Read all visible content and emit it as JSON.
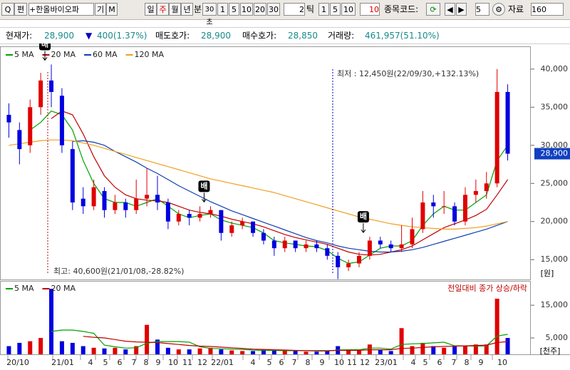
{
  "toolbar": {
    "search": "Q",
    "edit": "편",
    "stock_name": "+한올바이오파",
    "btn_gi": "기",
    "btn_m": "M",
    "periods": [
      "일",
      "주",
      "월",
      "년",
      "분"
    ],
    "minute": "30초",
    "minute_options": [
      "1",
      "5",
      "10",
      "20",
      "30"
    ],
    "tick_count": "2",
    "tick": "틱",
    "tick_options": [
      "1",
      "5",
      "10"
    ],
    "code_label": "종목코드:",
    "count": "5",
    "data_label": "자료",
    "data_count": "160"
  },
  "info": {
    "current_label": "현재가:",
    "current": "28,900",
    "change_arrow": "▼",
    "change": "400(1.37%)",
    "ask_label": "매도호가:",
    "ask": "28,900",
    "bid_label": "매수호가:",
    "bid": "28,850",
    "volume_label": "거래량:",
    "volume": "461,957(51.10%)"
  },
  "chart_data": [
    {
      "type": "candlestick",
      "up_color": "#e00000",
      "down_color": "#0000e0",
      "candles": [
        [
          34000,
          35500,
          31000,
          33000
        ],
        [
          32000,
          33000,
          27500,
          29500
        ],
        [
          30000,
          36000,
          29000,
          35000
        ],
        [
          35000,
          39500,
          34000,
          38500
        ],
        [
          38500,
          40600,
          35000,
          37000
        ],
        [
          36500,
          37500,
          29000,
          30000
        ],
        [
          29500,
          30500,
          21500,
          22500
        ],
        [
          23000,
          24500,
          21000,
          22000
        ],
        [
          22000,
          25500,
          21500,
          24500
        ],
        [
          24000,
          24500,
          20500,
          21500
        ],
        [
          21500,
          23500,
          21000,
          22500
        ],
        [
          22500,
          23000,
          20500,
          21500
        ],
        [
          21500,
          25500,
          21000,
          23000
        ],
        [
          23000,
          27000,
          22000,
          23500
        ],
        [
          23500,
          26000,
          21500,
          22500
        ],
        [
          22500,
          23000,
          19000,
          20000
        ],
        [
          20000,
          21500,
          19500,
          21000
        ],
        [
          21000,
          21500,
          19500,
          20500
        ],
        [
          20500,
          22000,
          20000,
          21000
        ],
        [
          21000,
          22000,
          20500,
          21500
        ],
        [
          21500,
          21500,
          17500,
          18500
        ],
        [
          18500,
          20000,
          18000,
          19500
        ],
        [
          19500,
          20500,
          19000,
          20000
        ],
        [
          20000,
          20000,
          18000,
          18500
        ],
        [
          18500,
          19000,
          17000,
          17500
        ],
        [
          17500,
          18000,
          15500,
          16500
        ],
        [
          16500,
          18000,
          16000,
          17500
        ],
        [
          17500,
          17500,
          16000,
          16500
        ],
        [
          16500,
          17500,
          16000,
          17000
        ],
        [
          17000,
          17500,
          16000,
          16500
        ],
        [
          16500,
          17000,
          15000,
          15500
        ],
        [
          15500,
          16000,
          12450,
          14000
        ],
        [
          14000,
          15000,
          13500,
          14500
        ],
        [
          14500,
          16000,
          14000,
          15500
        ],
        [
          15500,
          18000,
          15000,
          17500
        ],
        [
          17500,
          18000,
          16500,
          17000
        ],
        [
          17000,
          17500,
          16000,
          16500
        ],
        [
          16500,
          19500,
          16000,
          17000
        ],
        [
          17000,
          20500,
          16500,
          19000
        ],
        [
          19000,
          24000,
          18500,
          22500
        ],
        [
          22500,
          23500,
          20500,
          22000
        ],
        [
          22000,
          24000,
          21000,
          22000
        ],
        [
          22000,
          22500,
          19500,
          20000
        ],
        [
          20000,
          24500,
          19500,
          23500
        ],
        [
          23500,
          25500,
          22500,
          24000
        ],
        [
          24000,
          26500,
          23000,
          25000
        ],
        [
          25000,
          40000,
          24500,
          37000
        ],
        [
          37000,
          38000,
          28000,
          28900
        ]
      ],
      "series": [
        {
          "name": "5 MA",
          "color": "#00a000",
          "values": [
            null,
            null,
            32000,
            33000,
            34500,
            34000,
            32000,
            28000,
            25000,
            23000,
            22500,
            22500,
            22000,
            22500,
            23000,
            22000,
            21000,
            20500,
            20800,
            21000,
            20200,
            19800,
            19500,
            19200,
            18500,
            17500,
            17200,
            17000,
            16800,
            16700,
            16200,
            15200,
            14500,
            14700,
            15600,
            16500,
            16800,
            16800,
            17500,
            19500,
            21000,
            22000,
            21500,
            21500,
            22500,
            23500,
            28000,
            30000
          ]
        },
        {
          "name": "20 MA",
          "color": "#c00000",
          "values": [
            null,
            null,
            null,
            null,
            33500,
            34500,
            34000,
            31500,
            28500,
            26000,
            24500,
            23500,
            23000,
            22800,
            22700,
            22500,
            22000,
            21500,
            21200,
            21000,
            20700,
            20300,
            20000,
            19700,
            19300,
            18800,
            18300,
            17900,
            17600,
            17300,
            17000,
            16500,
            16000,
            15700,
            15600,
            15700,
            16000,
            16300,
            16800,
            17600,
            18400,
            19200,
            19700,
            20200,
            20800,
            21600,
            23500,
            25500
          ]
        },
        {
          "name": "60 MA",
          "color": "#1040b0",
          "values": [
            null,
            null,
            null,
            null,
            null,
            null,
            30500,
            30600,
            30400,
            30000,
            29200,
            28500,
            27800,
            27000,
            26300,
            25500,
            24700,
            24000,
            23300,
            22600,
            22000,
            21400,
            20900,
            20400,
            19900,
            19400,
            18900,
            18400,
            17900,
            17500,
            17200,
            16800,
            16500,
            16300,
            16100,
            16000,
            16000,
            16100,
            16300,
            16600,
            17000,
            17400,
            17800,
            18200,
            18600,
            19000,
            19500,
            20000
          ]
        },
        {
          "name": "120 MA",
          "color": "#f0a020",
          "values": [
            30000,
            30200,
            30400,
            30600,
            30700,
            30700,
            30600,
            30300,
            30000,
            29600,
            29200,
            28800,
            28400,
            28000,
            27600,
            27200,
            26800,
            26400,
            26000,
            25600,
            25300,
            25000,
            24700,
            24400,
            24100,
            23800,
            23400,
            23000,
            22600,
            22200,
            21800,
            21400,
            21000,
            20600,
            20300,
            20000,
            19700,
            19500,
            19300,
            19200,
            19100,
            19000,
            19000,
            19100,
            19200,
            19400,
            19700,
            20000
          ]
        }
      ],
      "ylim": [
        12400,
        42700
      ],
      "yticks": [
        {
          "value": 15000,
          "label": "15,000"
        },
        {
          "value": 20000,
          "label": "20,000"
        },
        {
          "value": 25000,
          "label": "25,000"
        },
        {
          "value": 30000,
          "label": "30,000"
        },
        {
          "value": 35000,
          "label": "35,000"
        },
        {
          "value": 40000,
          "label": "40,000"
        }
      ],
      "y_unit": "[원]",
      "markers": [
        "배",
        "배",
        "배"
      ],
      "annotations": [
        "최저 : 12,450원(22/09/30,+132.13%)",
        "최고: 40,600원(21/01/08,-28.82%)"
      ],
      "last_price": {
        "value": 28900,
        "label": "28,900"
      }
    },
    {
      "type": "bar",
      "values": [
        2500,
        3500,
        4000,
        5000,
        20000,
        4000,
        3500,
        2500,
        2000,
        1800,
        2000,
        1500,
        2500,
        9000,
        4500,
        2000,
        1500,
        1500,
        1800,
        2000,
        1500,
        1200,
        1000,
        1000,
        1500,
        1200,
        1000,
        1000,
        800,
        800,
        1200,
        2500,
        1500,
        1200,
        3000,
        1500,
        1000,
        8000,
        2500,
        3500,
        2500,
        2000,
        2500,
        2500,
        3000,
        3000,
        17000,
        5000
      ],
      "series": [
        {
          "name": "5 MA",
          "color": "#00a000",
          "values": [
            null,
            null,
            null,
            null,
            7000,
            7400,
            7400,
            7000,
            6400,
            2800,
            2300,
            1900,
            2000,
            3400,
            3900,
            3900,
            3900,
            3700,
            2300,
            1800,
            1700,
            1600,
            1500,
            1300,
            1200,
            1200,
            1100,
            1100,
            1100,
            1000,
            1000,
            1300,
            1400,
            1400,
            1900,
            1900,
            1600,
            3000,
            3200,
            3300,
            3500,
            3700,
            2600,
            2600,
            2500,
            2600,
            5600,
            6100
          ]
        },
        {
          "name": "20 MA",
          "color": "#c00000",
          "values": [
            null,
            null,
            null,
            null,
            null,
            null,
            null,
            5500,
            5200,
            5000,
            4500,
            4000,
            3800,
            3700,
            3600,
            3300,
            3000,
            2700,
            2500,
            2400,
            2200,
            2000,
            1800,
            1600,
            1500,
            1400,
            1300,
            1200,
            1100,
            1100,
            1100,
            1200,
            1200,
            1200,
            1400,
            1400,
            1400,
            1800,
            1900,
            2100,
            2300,
            2400,
            2500,
            2600,
            2700,
            2800,
            3600,
            3900
          ]
        }
      ],
      "ylim": [
        0,
        22000
      ],
      "yticks": [
        {
          "value": 5000,
          "label": "5,000"
        },
        {
          "value": 15000,
          "label": "15,000"
        }
      ],
      "y_unit": "[천주]",
      "note": "전일대비 종가 상승/하락",
      "x_labels": [
        "20/10",
        "21/01",
        "4",
        "5",
        "6",
        "7",
        "8",
        "9",
        "10",
        "11",
        "12",
        "22/01",
        "4",
        "5",
        "6",
        "7",
        "8",
        "9",
        "10",
        "11",
        "12",
        "23/01",
        "4",
        "5",
        "6",
        "7",
        "8",
        "9",
        "10"
      ]
    }
  ]
}
